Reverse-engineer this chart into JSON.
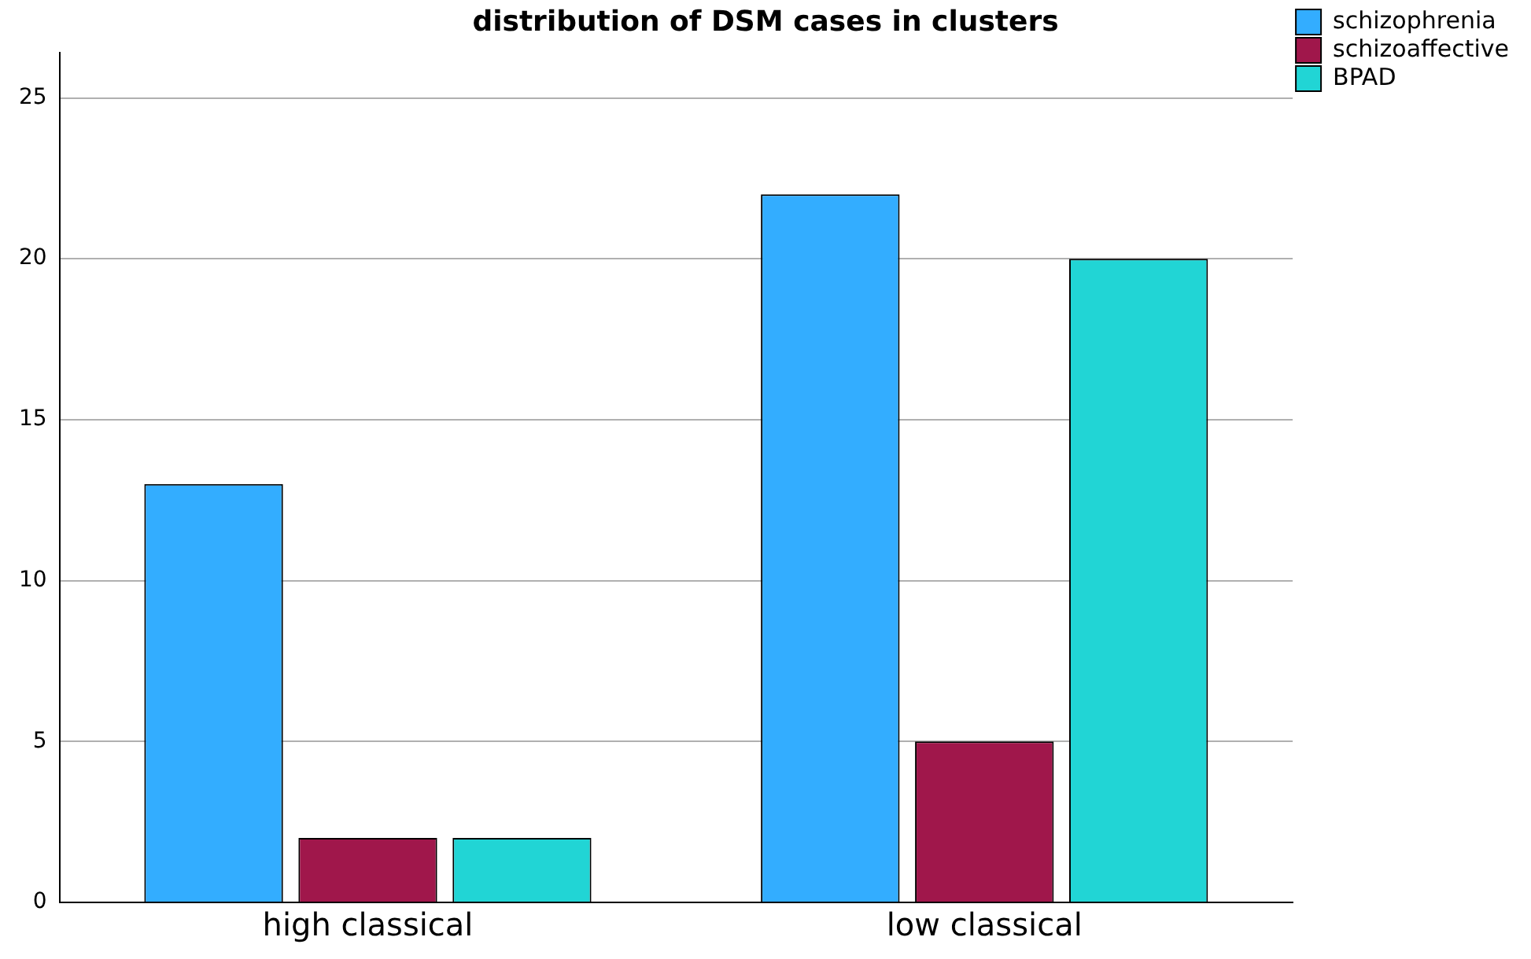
{
  "chart_data": {
    "type": "bar",
    "title": "distribution of DSM cases in clusters",
    "categories": [
      "high classical",
      "low classical"
    ],
    "series": [
      {
        "name": "schizophrenia",
        "color": "#33adff",
        "values": [
          13,
          22
        ]
      },
      {
        "name": "schizoaffective",
        "color": "#a0174b",
        "values": [
          2,
          5
        ]
      },
      {
        "name": "BPAD",
        "color": "#21d5d5",
        "values": [
          2,
          20
        ]
      }
    ],
    "ylim": [
      0,
      26.4
    ],
    "yticks": [
      0,
      5,
      10,
      15,
      20,
      25
    ],
    "grid": "y",
    "legend": "top right"
  }
}
